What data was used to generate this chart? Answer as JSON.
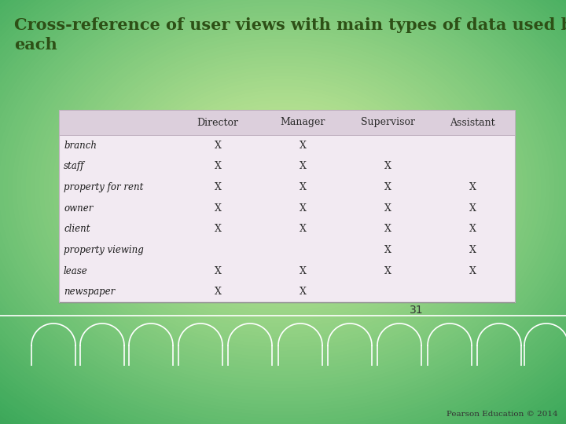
{
  "title": "Cross-reference of user views with main types of data used by\neach",
  "title_color": "#2d5016",
  "bg_color": "#8ab832",
  "table_bg": "#f2eaf2",
  "header_bg": "#dccfdc",
  "header_labels": [
    "Director",
    "Manager",
    "Supervisor",
    "Assistant"
  ],
  "row_labels": [
    "branch",
    "staff",
    "property for rent",
    "owner",
    "client",
    "property viewing",
    "lease",
    "newspaper"
  ],
  "data": [
    [
      true,
      true,
      false,
      false
    ],
    [
      true,
      true,
      true,
      false
    ],
    [
      true,
      true,
      true,
      true
    ],
    [
      true,
      true,
      true,
      true
    ],
    [
      true,
      true,
      true,
      true
    ],
    [
      false,
      false,
      true,
      true
    ],
    [
      true,
      true,
      true,
      true
    ],
    [
      true,
      true,
      false,
      false
    ]
  ],
  "page_number": "31",
  "footer_text": "Pearson Education © 2014",
  "title_fontsize": 15,
  "table_fontsize": 9,
  "arch_color": "white",
  "line_color": "#aaaaaa"
}
